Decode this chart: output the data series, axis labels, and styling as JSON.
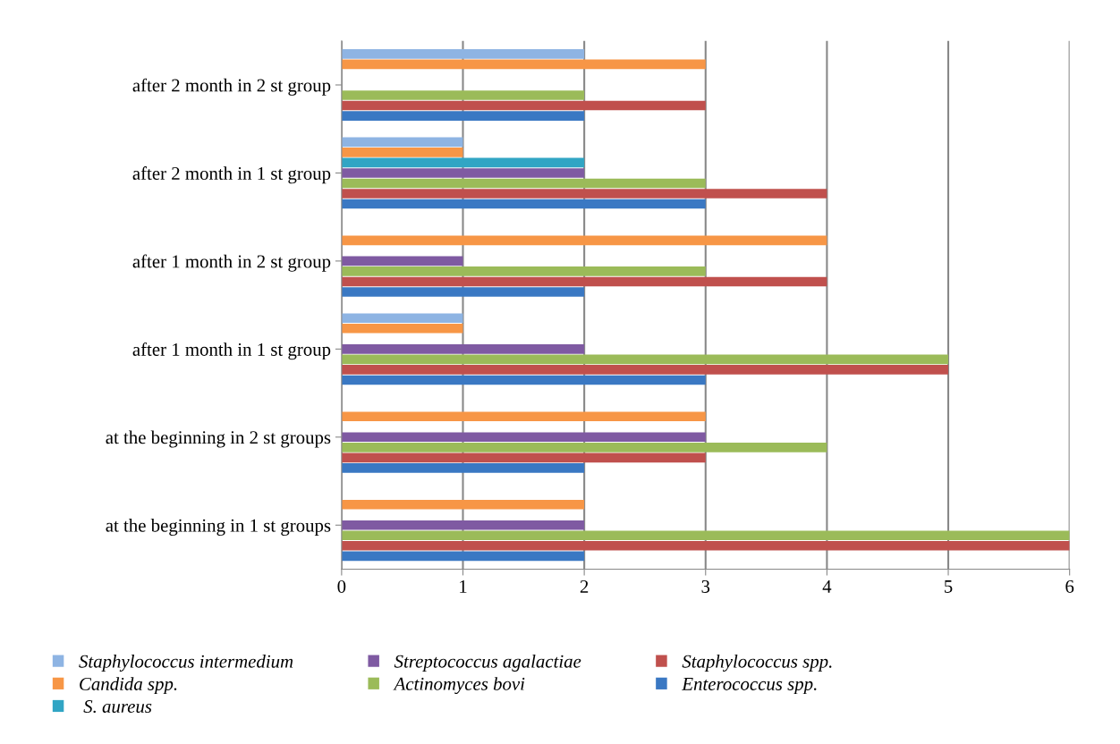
{
  "chart_data": {
    "type": "bar",
    "orientation": "horizontal",
    "categories": [
      "after 2 month in 2 st group",
      "after 2 month in 1 st group",
      "after 1 month in 2 st group",
      "after 1 month in 1 st group",
      "at the beginning in 2 st groups",
      "at the beginning in 1 st groups"
    ],
    "series": [
      {
        "name": "Staphylococcus intermedium",
        "color": "#8eb4e3",
        "values": [
          2,
          1,
          0,
          1,
          0,
          0
        ]
      },
      {
        "name": "Candida spp.",
        "color": "#f79646",
        "values": [
          3,
          1,
          4,
          1,
          3,
          2
        ]
      },
      {
        "name": " S. aureus",
        "color": "#31a5c4",
        "values": [
          0,
          2,
          0,
          0,
          0,
          0
        ]
      },
      {
        "name": "Streptococcus agalactiae",
        "color": "#7f5aa2",
        "values": [
          0,
          2,
          1,
          2,
          3,
          2
        ]
      },
      {
        "name": "Actinomyces bovi",
        "color": "#9bbb59",
        "values": [
          2,
          3,
          3,
          5,
          4,
          6
        ]
      },
      {
        "name": "Staphylococcus spp.",
        "color": "#c0504d",
        "values": [
          3,
          4,
          4,
          5,
          3,
          6
        ]
      },
      {
        "name": "Enterococcus spp.",
        "color": "#3a78c3",
        "values": [
          2,
          3,
          2,
          3,
          2,
          2
        ]
      }
    ],
    "xlim": [
      0,
      6
    ],
    "xticks": [
      0,
      1,
      2,
      3,
      4,
      5,
      6
    ],
    "grid": "x",
    "legend": "bottom"
  }
}
